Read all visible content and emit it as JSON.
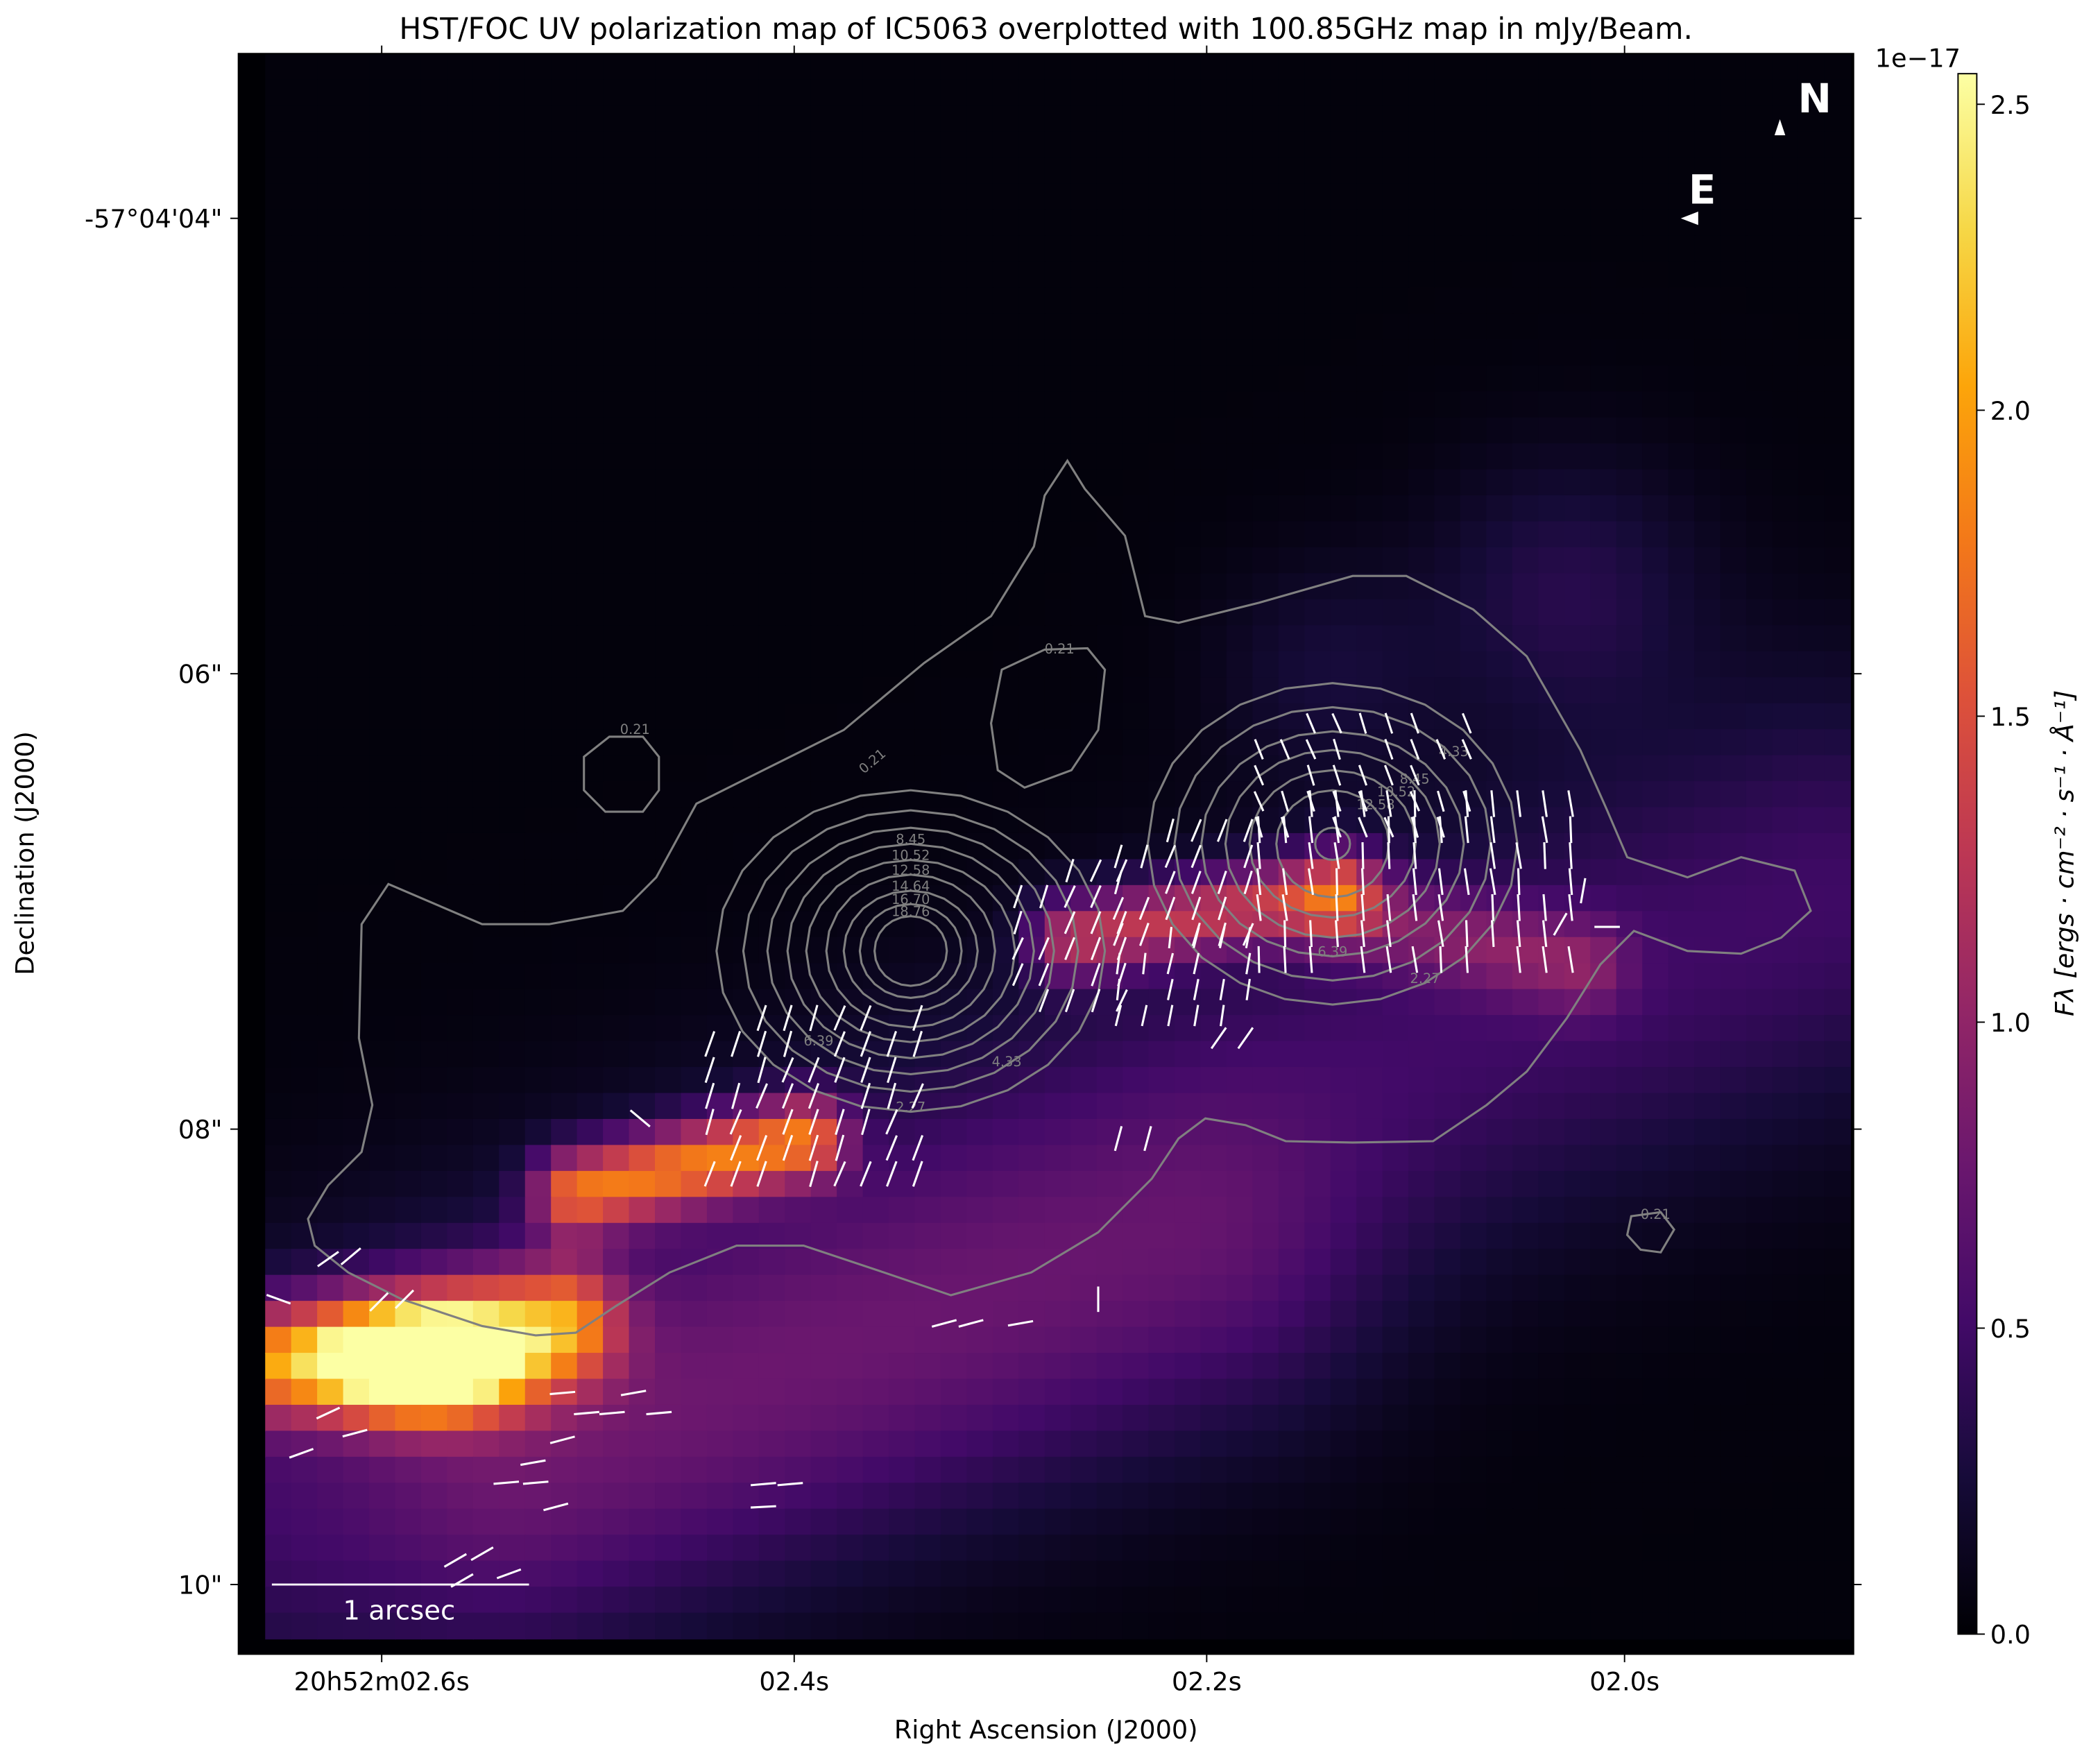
{
  "chart_data": {
    "type": "heatmap",
    "title": "HST/FOC UV polarization map of IC5063 overplotted with 100.85GHz map in mJy/Beam.",
    "xlabel": "Right Ascension (J2000)",
    "ylabel": "Declination (J2000)",
    "x_ticks": [
      "20h52m02.6s",
      "02.4s",
      "02.2s",
      "02.0s"
    ],
    "y_ticks": [
      "-57°04'04\"",
      "06\"",
      "08\"",
      "10\""
    ],
    "colormap": "inferno",
    "colorbar": {
      "label": "Fλ [ergs · cm⁻² · s⁻¹ · Å⁻¹]",
      "offset_text": "1e−17",
      "range": [
        0.0,
        2.55
      ],
      "ticks": [
        "0.0",
        "0.5",
        "1.0",
        "1.5",
        "2.0",
        "2.5"
      ]
    },
    "peak_flux": 2.5,
    "contours": {
      "color": "#808080",
      "levels": [
        "0.21",
        "2.27",
        "4.33",
        "6.39",
        "8.45",
        "10.52",
        "12.58",
        "14.64",
        "16.70",
        "18.76"
      ]
    },
    "polarization_vectors": {
      "color": "#ffffff"
    },
    "scale_bar": {
      "label": "1 arcsec"
    },
    "compass": {
      "north": "N",
      "east": "E"
    }
  }
}
